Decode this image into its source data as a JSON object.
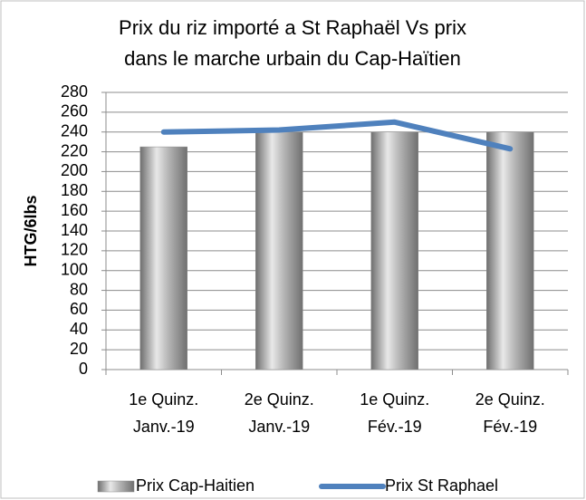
{
  "chart_data": {
    "type": "bar-line",
    "title": [
      "Prix du riz importé a St Raphaël Vs prix",
      "dans le marche urbain du Cap-Haïtien"
    ],
    "y_label": "HTG/6lbs",
    "categories": [
      [
        "1e Quinz.",
        "Janv.-19"
      ],
      [
        "2e Quinz.",
        "Janv.-19"
      ],
      [
        "1e Quinz.",
        "Fév.-19"
      ],
      [
        "2e Quinz.",
        "Fév.-19"
      ]
    ],
    "series": [
      {
        "name": "Prix Cap-Haitien",
        "type": "bar",
        "color": "#a6a6a6",
        "values": [
          225,
          240,
          240,
          240
        ]
      },
      {
        "name": "Prix St Raphael",
        "type": "line",
        "color": "#4f81bd",
        "values": [
          240,
          242,
          250,
          223
        ]
      }
    ],
    "ylim": [
      0,
      280
    ],
    "yticks": [
      0,
      20,
      40,
      60,
      80,
      100,
      120,
      140,
      160,
      180,
      200,
      220,
      240,
      260,
      280
    ],
    "grid": true,
    "legend": "bottom"
  }
}
